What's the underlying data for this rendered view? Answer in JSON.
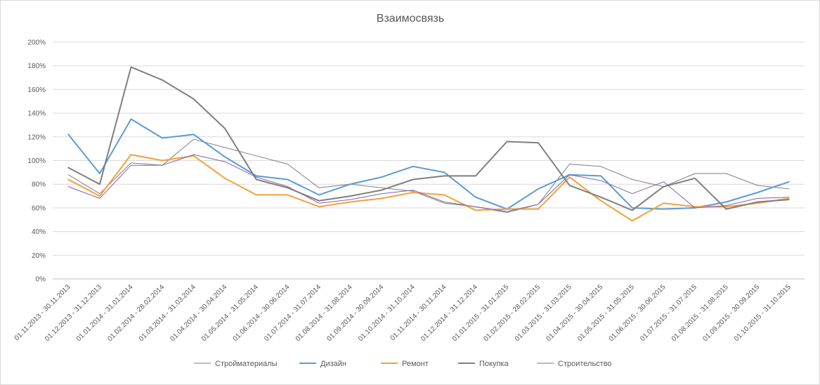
{
  "chart_data": {
    "type": "line",
    "title": "Взаимосвязь",
    "xlabel": "",
    "ylabel": "",
    "ylim": [
      0,
      2.0
    ],
    "y_ticks": [
      "0%",
      "20%",
      "40%",
      "60%",
      "80%",
      "100%",
      "120%",
      "140%",
      "160%",
      "180%",
      "200%"
    ],
    "grid": true,
    "legend_position": "bottom",
    "categories": [
      "01.11.2013 - 30.11.2013",
      "01.12.2013 - 31.12.2013",
      "01.01.2014 - 31.01.2014",
      "01.02.2014 - 28.02.2014",
      "01.03.2014 - 31.03.2014",
      "01.04.2014 - 30.04.2014",
      "01.05.2014 - 31.05.2014",
      "01.06.2014 - 30.06.2014",
      "01.07.2014 - 31.07.2014",
      "01.08.2014 - 31.08.2014",
      "01.09.2014 - 30.09.2014",
      "01.10.2014 - 31.10.2014",
      "01.11.2014 - 30.11.2014",
      "01.12.2014 - 31.12.2014",
      "01.01.2015 - 31.01.2015",
      "01.02.2015 - 28.02.2015",
      "01.03.2015 - 31.03.2015",
      "01.04.2015 - 30.04.2015",
      "01.05.2015 - 31.05.2015",
      "01.06.2015 - 30.06.2015",
      "01.07.2015 - 31.07.2015",
      "01.08.2015 - 31.08.2015",
      "01.09.2015 - 30.09.2015",
      "01.10.2015 - 31.10.2015"
    ],
    "series": [
      {
        "name": "Стройматериалы",
        "color": "#7f7f7f",
        "width": 1,
        "values": [
          0.88,
          0.72,
          0.98,
          0.96,
          1.18,
          1.11,
          1.04,
          0.97,
          0.77,
          0.8,
          0.77,
          0.74,
          0.64,
          0.61,
          0.56,
          0.63,
          0.97,
          0.95,
          0.84,
          0.78,
          0.89,
          0.89,
          0.79,
          0.76
        ]
      },
      {
        "name": "Дизайн",
        "color": "#5b9bd5",
        "width": 2,
        "values": [
          1.22,
          0.89,
          1.35,
          1.19,
          1.22,
          1.03,
          0.87,
          0.84,
          0.71,
          0.8,
          0.86,
          0.95,
          0.9,
          0.69,
          0.59,
          0.76,
          0.88,
          0.87,
          0.6,
          0.59,
          0.6,
          0.65,
          0.73,
          0.82
        ]
      },
      {
        "name": "Ремонт",
        "color": "#f4a13c",
        "width": 2,
        "values": [
          0.84,
          0.7,
          1.05,
          1.0,
          1.04,
          0.85,
          0.71,
          0.71,
          0.61,
          0.65,
          0.68,
          0.73,
          0.71,
          0.58,
          0.59,
          0.59,
          0.86,
          0.66,
          0.49,
          0.64,
          0.61,
          0.61,
          0.64,
          0.68
        ]
      },
      {
        "name": "Покупка",
        "color": "#7f7f7f",
        "width": 2,
        "values": [
          0.94,
          0.8,
          1.79,
          1.68,
          1.52,
          1.27,
          0.84,
          0.77,
          0.66,
          0.7,
          0.75,
          0.84,
          0.87,
          0.87,
          1.16,
          1.15,
          0.79,
          0.69,
          0.58,
          0.78,
          0.85,
          0.59,
          0.65,
          0.67
        ]
      },
      {
        "name": "Строительство",
        "color": "#8064a2",
        "width": 1,
        "values": [
          0.78,
          0.68,
          0.96,
          0.96,
          1.05,
          0.99,
          0.86,
          0.78,
          0.64,
          0.67,
          0.72,
          0.75,
          0.65,
          0.61,
          0.57,
          0.63,
          0.88,
          0.83,
          0.72,
          0.82,
          0.6,
          0.62,
          0.68,
          0.69
        ]
      }
    ]
  }
}
